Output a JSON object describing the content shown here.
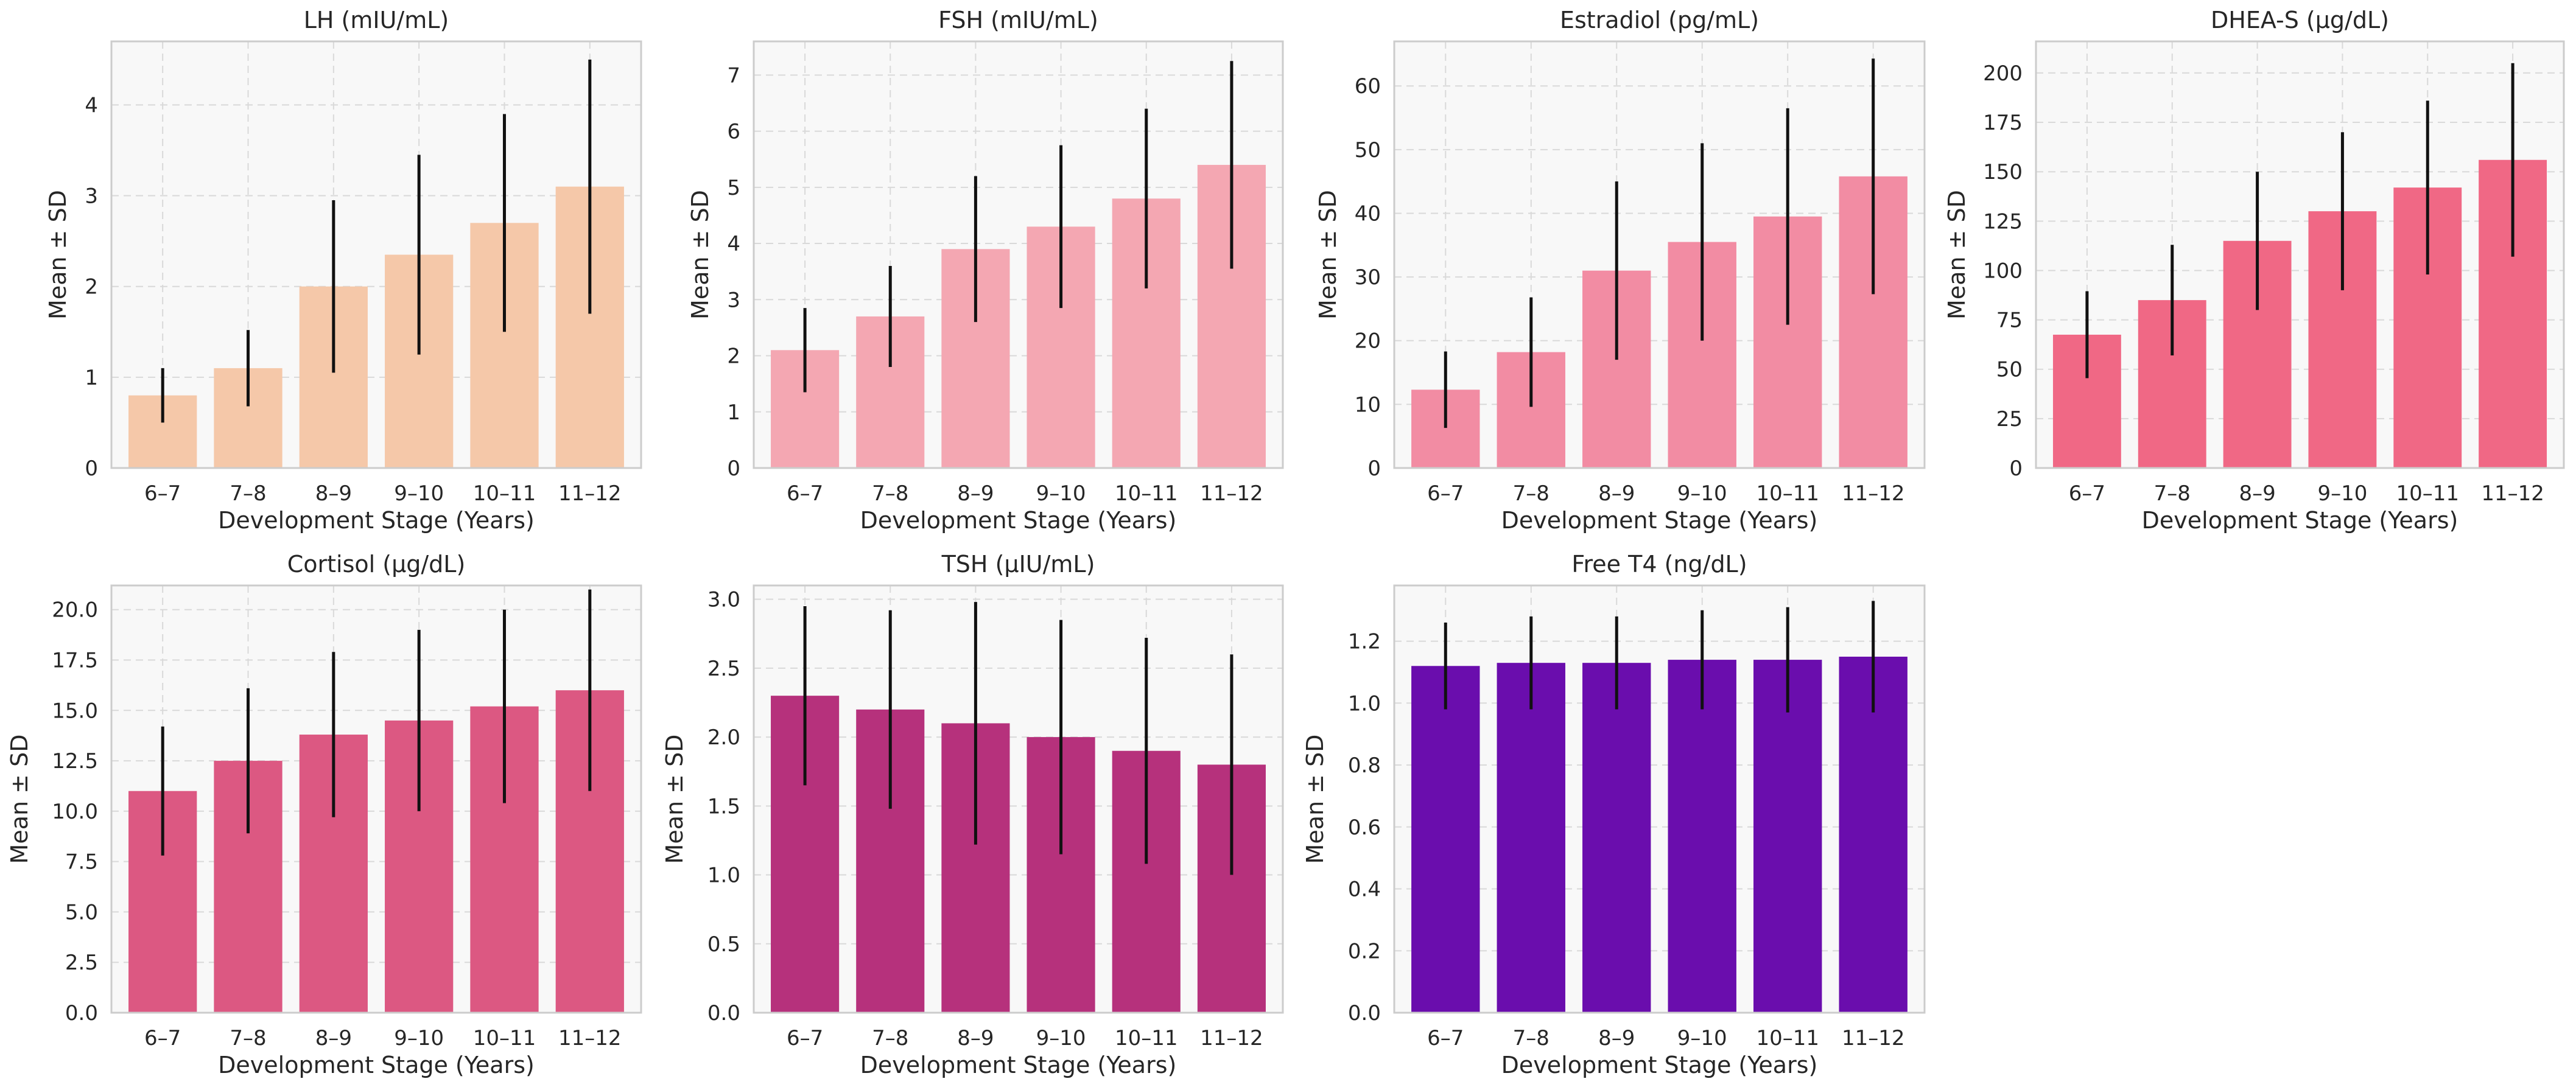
{
  "chart_data": [
    {
      "type": "bar",
      "title": "LH (mIU/mL)",
      "xlabel": "Development Stage (Years)",
      "ylabel": "Mean ± SD",
      "categories": [
        "6–7",
        "7–8",
        "8–9",
        "9–10",
        "10–11",
        "11–12"
      ],
      "values": [
        0.8,
        1.1,
        2.0,
        2.35,
        2.7,
        3.1
      ],
      "errors": [
        0.3,
        0.42,
        0.95,
        1.1,
        1.2,
        1.4
      ],
      "ylim": [
        0,
        4.7
      ],
      "yticks": [
        0,
        1,
        2,
        3,
        4
      ],
      "ytick_labels": [
        "0",
        "1",
        "2",
        "3",
        "4"
      ],
      "color": "#f5c8a9",
      "grid": true
    },
    {
      "type": "bar",
      "title": "FSH (mIU/mL)",
      "xlabel": "Development Stage (Years)",
      "ylabel": "Mean ± SD",
      "categories": [
        "6–7",
        "7–8",
        "8–9",
        "9–10",
        "10–11",
        "11–12"
      ],
      "values": [
        2.1,
        2.7,
        3.9,
        4.3,
        4.8,
        5.4
      ],
      "errors": [
        0.75,
        0.9,
        1.3,
        1.45,
        1.6,
        1.85
      ],
      "ylim": [
        0,
        7.6
      ],
      "yticks": [
        0,
        1,
        2,
        3,
        4,
        5,
        6,
        7
      ],
      "ytick_labels": [
        "0",
        "1",
        "2",
        "3",
        "4",
        "5",
        "6",
        "7"
      ],
      "color": "#f4a7b2",
      "grid": true
    },
    {
      "type": "bar",
      "title": "Estradiol (pg/mL)",
      "xlabel": "Development Stage (Years)",
      "ylabel": "Mean ± SD",
      "categories": [
        "6–7",
        "7–8",
        "8–9",
        "9–10",
        "10–11",
        "11–12"
      ],
      "values": [
        12.3,
        18.2,
        31.0,
        35.5,
        39.5,
        45.8
      ],
      "errors": [
        6.0,
        8.6,
        14.0,
        15.5,
        17.0,
        18.5
      ],
      "ylim": [
        0,
        67
      ],
      "yticks": [
        0,
        10,
        20,
        30,
        40,
        50,
        60
      ],
      "ytick_labels": [
        "0",
        "10",
        "20",
        "30",
        "40",
        "50",
        "60"
      ],
      "color": "#f28ca3",
      "grid": true
    },
    {
      "type": "bar",
      "title": "DHEA-S (µg/dL)",
      "xlabel": "Development Stage (Years)",
      "ylabel": "Mean ± SD",
      "categories": [
        "6–7",
        "7–8",
        "8–9",
        "9–10",
        "10–11",
        "11–12"
      ],
      "values": [
        67.5,
        85,
        115,
        130,
        142,
        156
      ],
      "errors": [
        22,
        28,
        35,
        40,
        44,
        49
      ],
      "ylim": [
        0,
        216
      ],
      "yticks": [
        0,
        25,
        50,
        75,
        100,
        125,
        150,
        175,
        200
      ],
      "ytick_labels": [
        "0",
        "25",
        "50",
        "75",
        "100",
        "125",
        "150",
        "175",
        "200"
      ],
      "color": "#f06885",
      "grid": true
    },
    {
      "type": "bar",
      "title": "Cortisol (µg/dL)",
      "xlabel": "Development Stage (Years)",
      "ylabel": "Mean ± SD",
      "categories": [
        "6–7",
        "7–8",
        "8–9",
        "9–10",
        "10–11",
        "11–12"
      ],
      "values": [
        11.0,
        12.5,
        13.8,
        14.5,
        15.2,
        16.0
      ],
      "errors": [
        3.2,
        3.6,
        4.1,
        4.5,
        4.8,
        5.0
      ],
      "ylim": [
        0,
        21.2
      ],
      "yticks": [
        0,
        2.5,
        5,
        7.5,
        10,
        12.5,
        15,
        17.5,
        20
      ],
      "ytick_labels": [
        "0.0",
        "2.5",
        "5.0",
        "7.5",
        "10.0",
        "12.5",
        "15.0",
        "17.5",
        "20.0"
      ],
      "color": "#dc5882",
      "grid": true
    },
    {
      "type": "bar",
      "title": "TSH (µIU/mL)",
      "xlabel": "Development Stage (Years)",
      "ylabel": "Mean ± SD",
      "categories": [
        "6–7",
        "7–8",
        "8–9",
        "9–10",
        "10–11",
        "11–12"
      ],
      "values": [
        2.3,
        2.2,
        2.1,
        2.0,
        1.9,
        1.8
      ],
      "errors": [
        0.65,
        0.72,
        0.88,
        0.85,
        0.82,
        0.8
      ],
      "ylim": [
        0,
        3.1
      ],
      "yticks": [
        0,
        0.5,
        1,
        1.5,
        2,
        2.5,
        3
      ],
      "ytick_labels": [
        "0.0",
        "0.5",
        "1.0",
        "1.5",
        "2.0",
        "2.5",
        "3.0"
      ],
      "color": "#b6317c",
      "grid": true
    },
    {
      "type": "bar",
      "title": "Free T4 (ng/dL)",
      "xlabel": "Development Stage (Years)",
      "ylabel": "Mean ± SD",
      "categories": [
        "6–7",
        "7–8",
        "8–9",
        "9–10",
        "10–11",
        "11–12"
      ],
      "values": [
        1.12,
        1.13,
        1.13,
        1.14,
        1.14,
        1.15
      ],
      "errors": [
        0.14,
        0.15,
        0.15,
        0.16,
        0.17,
        0.18
      ],
      "ylim": [
        0,
        1.38
      ],
      "yticks": [
        0,
        0.2,
        0.4,
        0.6,
        0.8,
        1.0,
        1.2
      ],
      "ytick_labels": [
        "0.0",
        "0.2",
        "0.4",
        "0.6",
        "0.8",
        "1.0",
        "1.2"
      ],
      "color": "#6a0dad",
      "grid": true
    }
  ]
}
